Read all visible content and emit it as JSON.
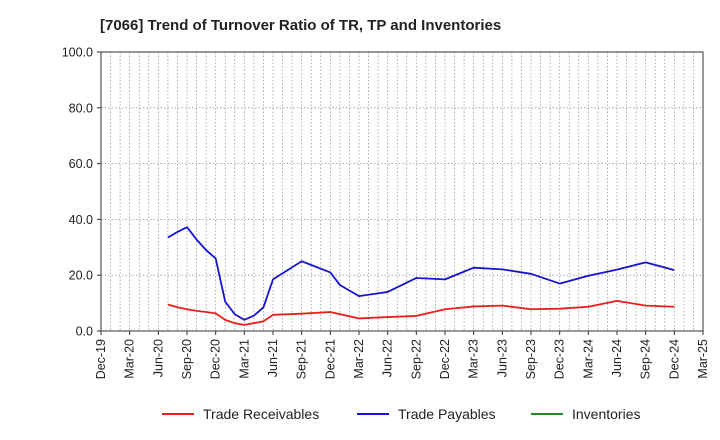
{
  "chart_data": {
    "type": "line",
    "title": "[7066]  Trend of Turnover Ratio of TR, TP and Inventories",
    "xlabel": "",
    "ylabel": "",
    "ylim": [
      0,
      100
    ],
    "yticks": [
      "0.0",
      "20.0",
      "40.0",
      "60.0",
      "80.0",
      "100.0"
    ],
    "x_range": [
      "2019-12",
      "2025-03"
    ],
    "x_tick_labels": [
      "Dec-19",
      "Mar-20",
      "Jun-20",
      "Sep-20",
      "Dec-20",
      "Mar-21",
      "Jun-21",
      "Sep-21",
      "Dec-21",
      "Mar-22",
      "Jun-22",
      "Sep-22",
      "Dec-22",
      "Mar-23",
      "Jun-23",
      "Sep-23",
      "Dec-23",
      "Mar-24",
      "Jun-24",
      "Sep-24",
      "Dec-24",
      "Mar-25"
    ],
    "grid": true,
    "legend_position": "bottom",
    "series": [
      {
        "name": "Trade Receivables",
        "color": "#e8201c",
        "points": [
          [
            "2020-07",
            9.5
          ],
          [
            "2020-08",
            8.5
          ],
          [
            "2020-09",
            7.8
          ],
          [
            "2020-10",
            7.2
          ],
          [
            "2020-11",
            6.8
          ],
          [
            "2020-12",
            6.3
          ],
          [
            "2021-01",
            4.0
          ],
          [
            "2021-02",
            2.8
          ],
          [
            "2021-03",
            2.2
          ],
          [
            "2021-04",
            2.8
          ],
          [
            "2021-05",
            3.5
          ],
          [
            "2021-06",
            5.8
          ],
          [
            "2021-09",
            6.2
          ],
          [
            "2021-12",
            6.8
          ],
          [
            "2022-03",
            4.5
          ],
          [
            "2022-06",
            5.0
          ],
          [
            "2022-09",
            5.4
          ],
          [
            "2022-12",
            7.8
          ],
          [
            "2023-03",
            8.8
          ],
          [
            "2023-06",
            9.1
          ],
          [
            "2023-09",
            7.8
          ],
          [
            "2023-12",
            8.0
          ],
          [
            "2024-03",
            8.7
          ],
          [
            "2024-06",
            10.8
          ],
          [
            "2024-09",
            9.1
          ],
          [
            "2024-12",
            8.7
          ]
        ]
      },
      {
        "name": "Trade Payables",
        "color": "#1414d2",
        "points": [
          [
            "2020-07",
            33.5
          ],
          [
            "2020-08",
            35.5
          ],
          [
            "2020-09",
            37.2
          ],
          [
            "2020-10",
            32.8
          ],
          [
            "2020-11",
            29.0
          ],
          [
            "2020-12",
            26.0
          ],
          [
            "2021-01",
            10.5
          ],
          [
            "2021-02",
            6.0
          ],
          [
            "2021-03",
            4.0
          ],
          [
            "2021-04",
            5.5
          ],
          [
            "2021-05",
            8.5
          ],
          [
            "2021-06",
            18.5
          ],
          [
            "2021-09",
            25.0
          ],
          [
            "2021-12",
            21.0
          ],
          [
            "2022-01",
            16.5
          ],
          [
            "2022-03",
            12.5
          ],
          [
            "2022-06",
            14.0
          ],
          [
            "2022-09",
            19.0
          ],
          [
            "2022-12",
            18.5
          ],
          [
            "2023-03",
            22.7
          ],
          [
            "2023-06",
            22.1
          ],
          [
            "2023-09",
            20.5
          ],
          [
            "2023-12",
            17.0
          ],
          [
            "2024-03",
            19.8
          ],
          [
            "2024-06",
            22.0
          ],
          [
            "2024-09",
            24.6
          ],
          [
            "2024-12",
            21.8
          ]
        ]
      },
      {
        "name": "Inventories",
        "color": "#1e8c1e",
        "points": []
      }
    ]
  }
}
